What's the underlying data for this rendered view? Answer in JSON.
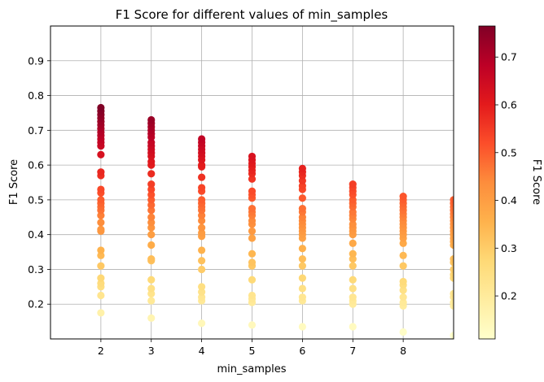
{
  "chart_data": {
    "type": "scatter",
    "title": "F1 Score for different values of min_samples",
    "xlabel": "min_samples",
    "ylabel": "F1 Score",
    "xlim": [
      1,
      9
    ],
    "ylim": [
      0.1,
      1.0
    ],
    "xticks": [
      "2",
      "3",
      "4",
      "5",
      "6",
      "7",
      "8"
    ],
    "yticks": [
      "0.2",
      "0.3",
      "0.4",
      "0.5",
      "0.6",
      "0.7",
      "0.8",
      "0.9"
    ],
    "grid": true,
    "colormap": "YlOrRd",
    "colorbar": {
      "label": "F1 Score",
      "range": [
        0.11,
        0.765
      ],
      "ticks": [
        "0.2",
        "0.3",
        "0.4",
        "0.5",
        "0.6",
        "0.7"
      ]
    },
    "series": [
      {
        "x": 2,
        "values": [
          0.765,
          0.755,
          0.745,
          0.735,
          0.725,
          0.715,
          0.705,
          0.695,
          0.685,
          0.675,
          0.665,
          0.655,
          0.63,
          0.58,
          0.57,
          0.53,
          0.52,
          0.5,
          0.49,
          0.48,
          0.47,
          0.455,
          0.435,
          0.415,
          0.41,
          0.355,
          0.34,
          0.31,
          0.275,
          0.26,
          0.25,
          0.225,
          0.175
        ]
      },
      {
        "x": 3,
        "values": [
          0.73,
          0.72,
          0.71,
          0.7,
          0.69,
          0.68,
          0.665,
          0.655,
          0.645,
          0.635,
          0.625,
          0.61,
          0.6,
          0.575,
          0.545,
          0.53,
          0.515,
          0.5,
          0.485,
          0.47,
          0.45,
          0.435,
          0.42,
          0.4,
          0.37,
          0.33,
          0.325,
          0.27,
          0.245,
          0.23,
          0.21,
          0.16
        ]
      },
      {
        "x": 4,
        "values": [
          0.675,
          0.665,
          0.655,
          0.645,
          0.635,
          0.625,
          0.615,
          0.6,
          0.595,
          0.565,
          0.535,
          0.525,
          0.5,
          0.49,
          0.48,
          0.47,
          0.455,
          0.44,
          0.42,
          0.405,
          0.395,
          0.355,
          0.325,
          0.3,
          0.25,
          0.235,
          0.22,
          0.21,
          0.145
        ]
      },
      {
        "x": 5,
        "values": [
          0.625,
          0.615,
          0.605,
          0.595,
          0.585,
          0.575,
          0.56,
          0.525,
          0.515,
          0.505,
          0.475,
          0.465,
          0.455,
          0.44,
          0.43,
          0.41,
          0.39,
          0.345,
          0.32,
          0.31,
          0.27,
          0.225,
          0.215,
          0.205,
          0.14
        ]
      },
      {
        "x": 6,
        "values": [
          0.59,
          0.58,
          0.57,
          0.555,
          0.54,
          0.53,
          0.505,
          0.475,
          0.465,
          0.45,
          0.44,
          0.43,
          0.42,
          0.41,
          0.4,
          0.39,
          0.36,
          0.33,
          0.31,
          0.275,
          0.245,
          0.22,
          0.21,
          0.135
        ]
      },
      {
        "x": 7,
        "values": [
          0.545,
          0.535,
          0.525,
          0.515,
          0.5,
          0.49,
          0.48,
          0.465,
          0.455,
          0.445,
          0.43,
          0.42,
          0.41,
          0.4,
          0.375,
          0.345,
          0.33,
          0.31,
          0.27,
          0.245,
          0.22,
          0.21,
          0.2,
          0.135
        ]
      },
      {
        "x": 8,
        "values": [
          0.51,
          0.5,
          0.49,
          0.48,
          0.47,
          0.46,
          0.45,
          0.44,
          0.43,
          0.42,
          0.41,
          0.4,
          0.39,
          0.375,
          0.34,
          0.31,
          0.265,
          0.255,
          0.24,
          0.22,
          0.205,
          0.195,
          0.12
        ]
      },
      {
        "x": 9,
        "values": [
          0.5,
          0.49,
          0.48,
          0.47,
          0.46,
          0.45,
          0.44,
          0.43,
          0.42,
          0.41,
          0.4,
          0.39,
          0.38,
          0.37,
          0.33,
          0.32,
          0.3,
          0.285,
          0.275,
          0.23,
          0.22,
          0.205,
          0.195,
          0.11
        ]
      }
    ]
  }
}
